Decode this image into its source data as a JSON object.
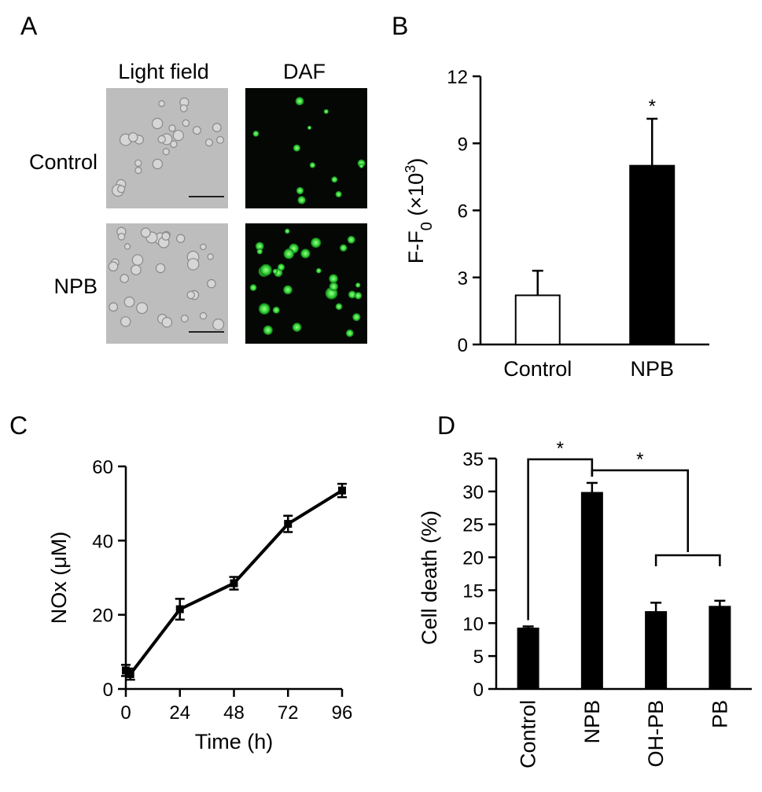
{
  "panels": {
    "A": {
      "letter": "A",
      "columns": [
        "Light field",
        "DAF"
      ],
      "rows": [
        "Control",
        "NPB"
      ]
    },
    "B": {
      "letter": "B"
    },
    "C": {
      "letter": "C"
    },
    "D": {
      "letter": "D"
    }
  },
  "chart_data": [
    {
      "panel": "B",
      "type": "bar",
      "categories": [
        "Control",
        "NPB"
      ],
      "values": [
        2.2,
        8.0
      ],
      "errors": [
        1.1,
        2.1
      ],
      "ylabel_main": "F-F",
      "ylabel_sub": "0",
      "ylabel_unit": " (×10",
      "ylabel_sup": "3",
      "ylabel_close": ")",
      "ylim": [
        0,
        12
      ],
      "yticks": [
        0,
        3,
        6,
        9,
        12
      ],
      "bar_colors": [
        "#ffffff",
        "#000000"
      ],
      "significance": [
        {
          "category": "NPB",
          "mark": "*"
        }
      ]
    },
    {
      "panel": "C",
      "type": "line",
      "x": [
        0,
        2,
        24,
        48,
        72,
        96
      ],
      "y": [
        5,
        4,
        21.5,
        28.5,
        44.5,
        53.5
      ],
      "errors": [
        1.5,
        1.5,
        2.8,
        1.7,
        2.2,
        1.8
      ],
      "xlabel": "Time (h)",
      "ylabel": "NOx (μM)",
      "xticks": [
        0,
        24,
        48,
        72,
        96
      ],
      "yticks": [
        0,
        20,
        40,
        60
      ],
      "xlim": [
        0,
        96
      ],
      "ylim": [
        0,
        60
      ]
    },
    {
      "panel": "D",
      "type": "bar",
      "categories": [
        "Control",
        "NPB",
        "OH-PB",
        "PB"
      ],
      "values": [
        9.2,
        29.8,
        11.7,
        12.5
      ],
      "errors": [
        0.3,
        1.5,
        1.4,
        0.9
      ],
      "ylabel": "Cell death (%)",
      "ylim": [
        0,
        35
      ],
      "yticks": [
        0,
        5,
        10,
        15,
        20,
        25,
        30,
        35
      ],
      "bar_colors": [
        "#000000",
        "#000000",
        "#000000",
        "#000000"
      ],
      "significance": [
        {
          "from": "Control",
          "to": "NPB",
          "mark": "*"
        },
        {
          "from": "NPB",
          "to": "OH-PB/PB",
          "mark": "*"
        }
      ]
    }
  ]
}
